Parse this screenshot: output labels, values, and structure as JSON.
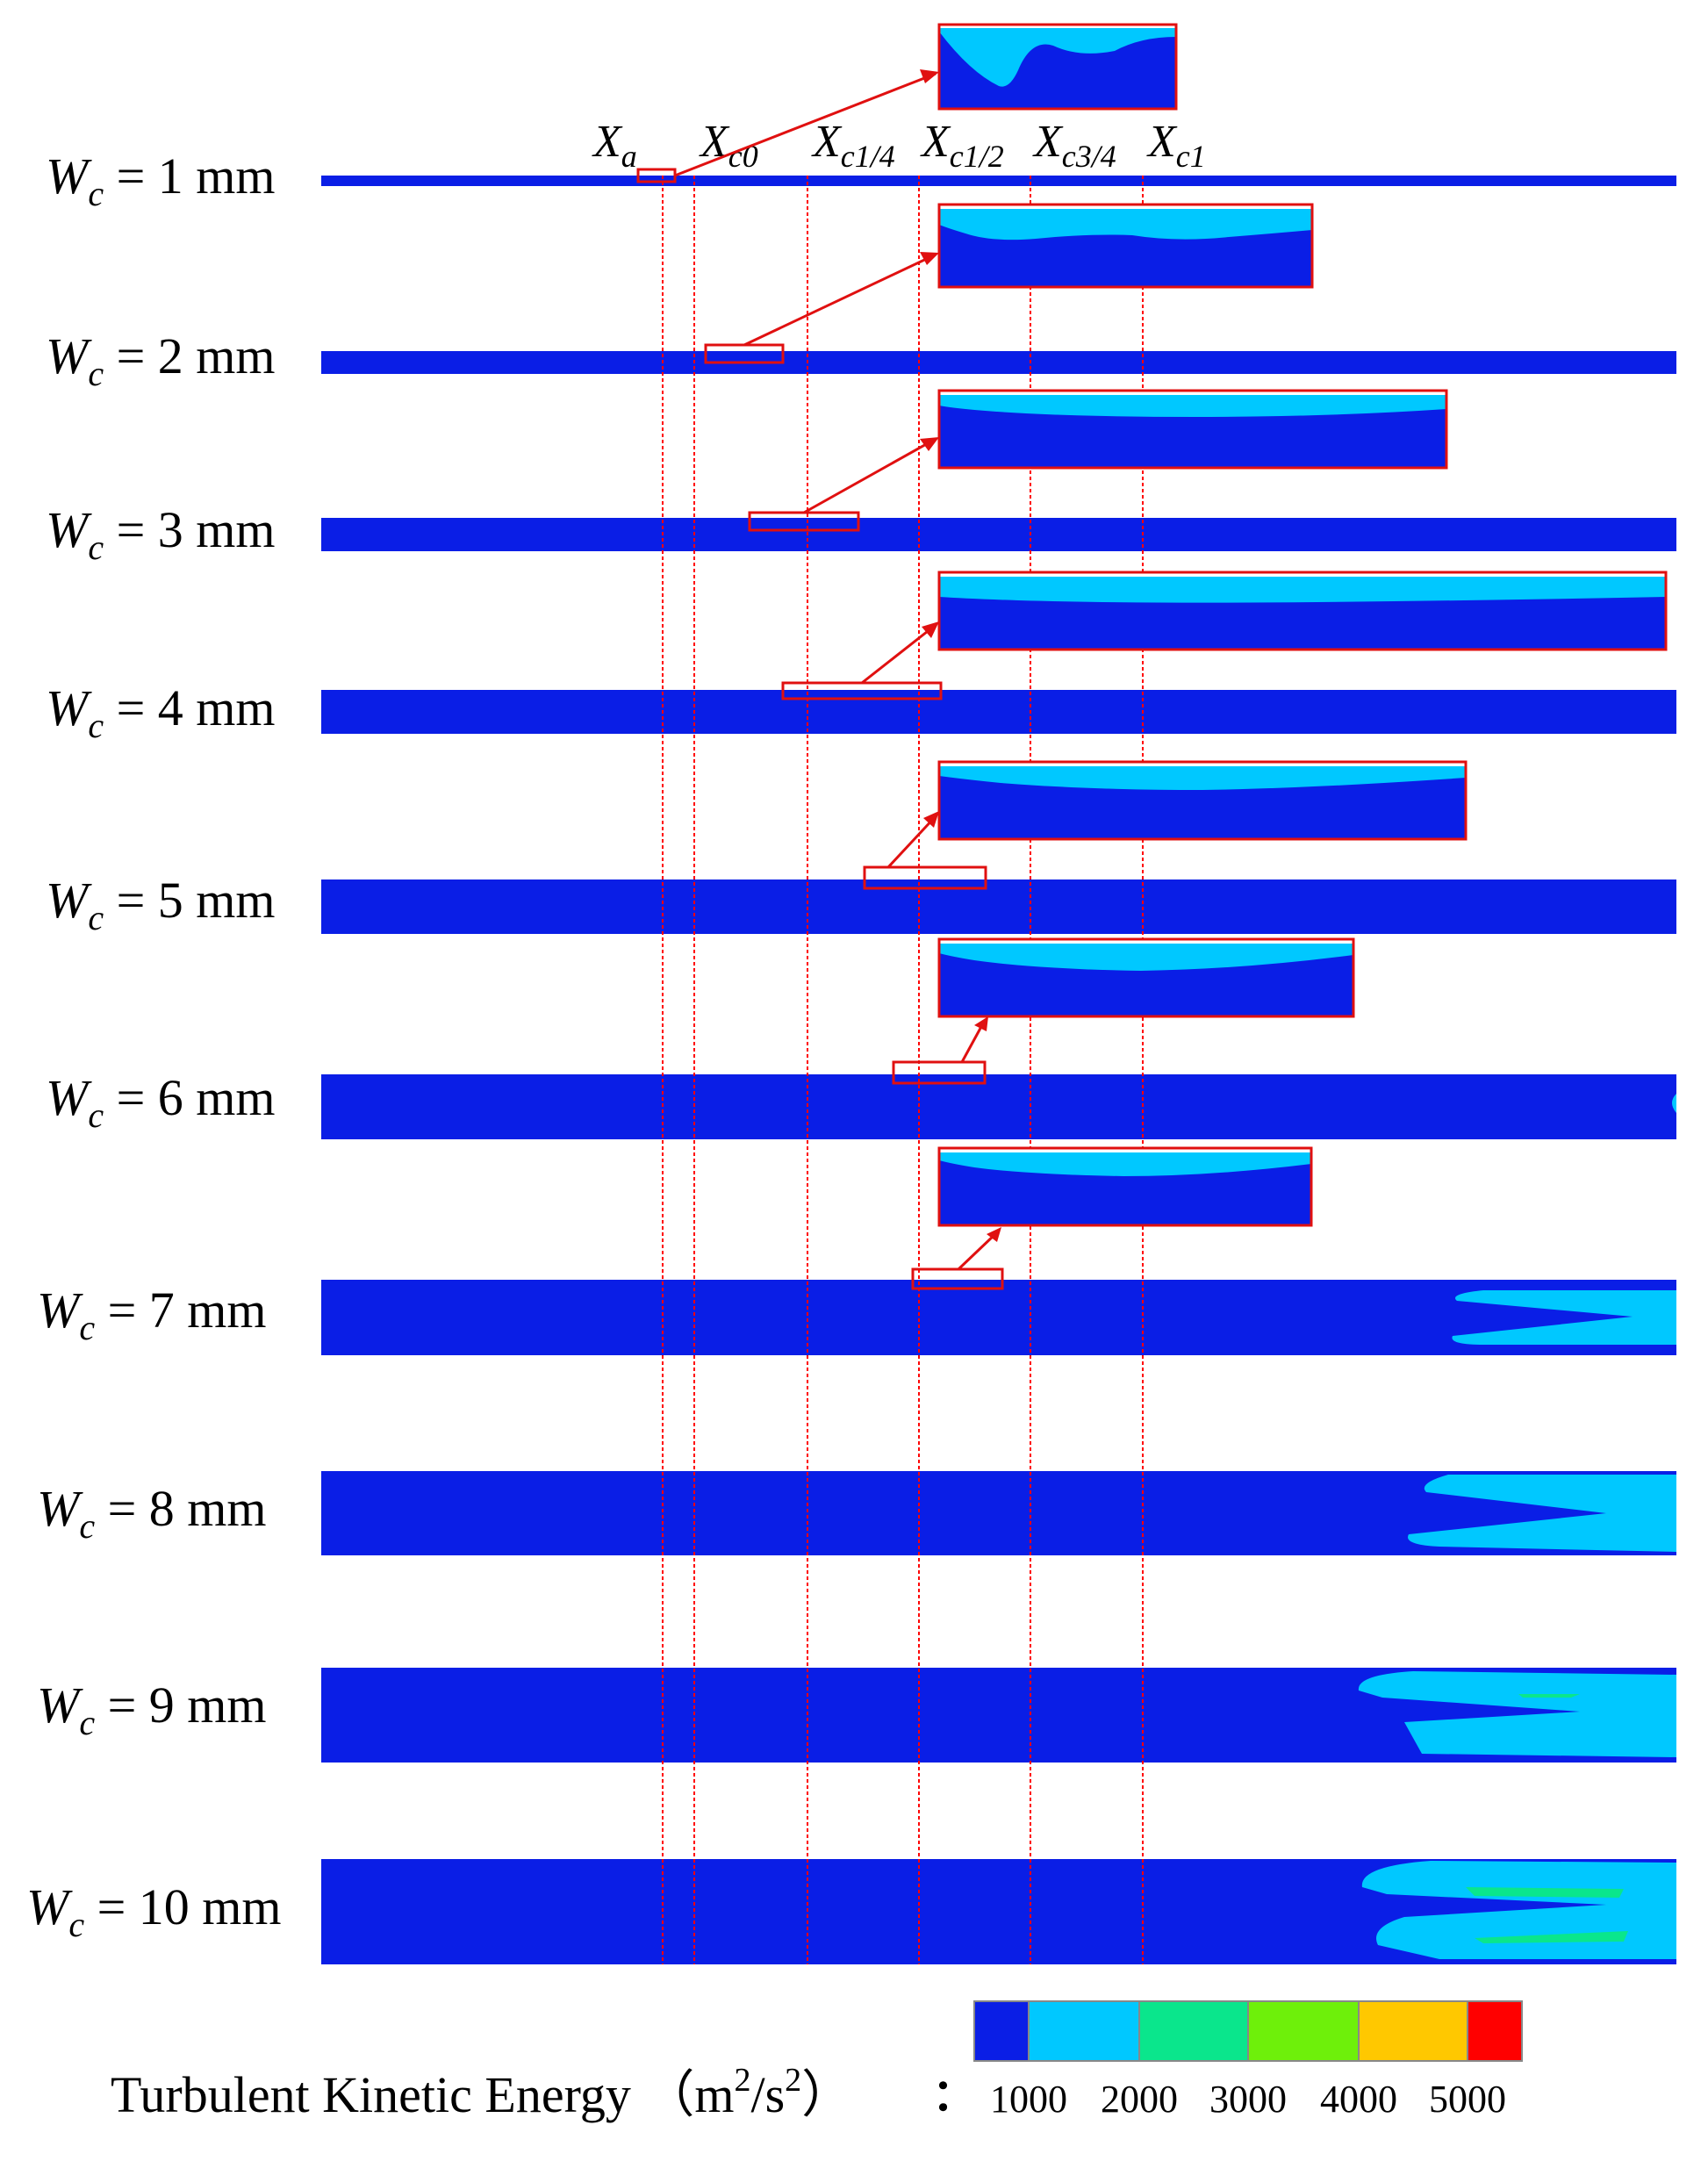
{
  "colors": {
    "level_0_1000": "#0a1ee6",
    "level_1000_2000": "#00c8ff",
    "level_2000_3000": "#0ae68c",
    "level_3000_4000": "#6ef00a",
    "level_4000_5000": "#ffc800",
    "level_5000_plus": "#ff0000",
    "guide_line": "#ff0000",
    "highlight_box": "#e01010",
    "arrow": "#e01010"
  },
  "markers": [
    {
      "main": "X",
      "sub": "a"
    },
    {
      "main": "X",
      "sub": "c0"
    },
    {
      "main": "X",
      "sub": "c1/4"
    },
    {
      "main": "X",
      "sub": "c1/2"
    },
    {
      "main": "X",
      "sub": "c3/4"
    },
    {
      "main": "X",
      "sub": "c1"
    }
  ],
  "rows": [
    {
      "label_main": "W",
      "label_sub": "c",
      "label_rest": " = 1 mm"
    },
    {
      "label_main": "W",
      "label_sub": "c",
      "label_rest": " = 2 mm"
    },
    {
      "label_main": "W",
      "label_sub": "c",
      "label_rest": " = 3 mm"
    },
    {
      "label_main": "W",
      "label_sub": "c",
      "label_rest": " = 4 mm"
    },
    {
      "label_main": "W",
      "label_sub": "c",
      "label_rest": " = 5 mm"
    },
    {
      "label_main": "W",
      "label_sub": "c",
      "label_rest": " = 6 mm"
    },
    {
      "label_main": "W",
      "label_sub": "c",
      "label_rest": " = 7 mm"
    },
    {
      "label_main": "W",
      "label_sub": "c",
      "label_rest": " = 8 mm"
    },
    {
      "label_main": "W",
      "label_sub": "c",
      "label_rest": " = 9 mm"
    },
    {
      "label_main": "W",
      "label_sub": "c",
      "label_rest": " = 10 mm"
    }
  ],
  "legend": {
    "title_prefix": "Turbulent Kinetic Energy （m",
    "title_sup1": "2",
    "title_mid": "/s",
    "title_sup2": "2",
    "title_suffix": "）",
    "separator": "：",
    "ticks": [
      "1000",
      "2000",
      "3000",
      "4000",
      "5000"
    ]
  }
}
